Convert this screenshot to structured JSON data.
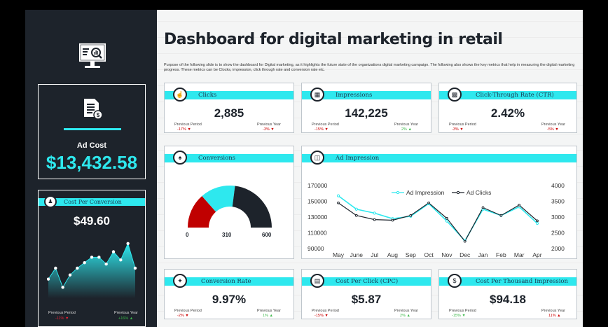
{
  "title": "Dashboard for digital marketing in retail",
  "subtitle": "Purpose of the following slide is to show the dashboard for Digital marketing, as it highlights the future state of the organizations digital marketing campaign. The following also shows the key metrics that help in measuring the digital marketing progress. These metrics can be Clocks, impression, click through rate and conversion rate etc.",
  "ad_cost": {
    "label": "Ad Cost",
    "value": "$13,432.58"
  },
  "cost_per_conversion": {
    "title": "Cost Per Conversion",
    "value": "$49.60",
    "prev_period_label": "Previous Period",
    "prev_period_value": "-11% ▼",
    "prev_year_label": "Previous Year",
    "prev_year_value": "+16% ▲"
  },
  "clicks": {
    "title": "Clicks",
    "value": "2,885",
    "pp_label": "Previous Period",
    "pp_value": "-17% ▼",
    "py_label": "Previous Year",
    "py_value": "-3% ▼"
  },
  "impressions": {
    "title": "Impressions",
    "value": "142,225",
    "pp_label": "Previous Period",
    "pp_value": "-15% ▼",
    "py_label": "Previous Year",
    "py_value": "2% ▲"
  },
  "ctr": {
    "title": "Click-Through Rate (CTR)",
    "value": "2.42%",
    "pp_label": "Previous Period",
    "pp_value": "-3% ▼",
    "py_label": "Previous Year",
    "py_value": "-5% ▼"
  },
  "conversions": {
    "title": "Conversions",
    "min": "0",
    "mid": "310",
    "max": "600"
  },
  "ad_impression": {
    "title": "Ad Impression"
  },
  "conversion_rate": {
    "title": "Conversion Rate",
    "value": "9.97%",
    "pp_label": "Previous Period",
    "pp_value": "-2% ▼",
    "py_label": "Previous Year",
    "py_value": "1% ▲"
  },
  "cpc": {
    "title": "Cost Per Click (CPC)",
    "value": "$5.87",
    "pp_label": "Previous Period",
    "pp_value": "-15% ▼",
    "py_label": "Previous Year",
    "py_value": "2% ▲"
  },
  "cpm": {
    "title": "Cost Per Thousand Impression",
    "value": "$94.18",
    "pp_label": "Previous Period",
    "pp_value": "-15% ▼",
    "py_label": "Previous Year",
    "py_value": "11% ▲"
  },
  "colors": {
    "accent": "#2ee8ee",
    "dark": "#1d232b",
    "red": "#c00000",
    "green": "#3cb84a"
  },
  "chart_data": [
    {
      "type": "line",
      "title": "Ad Impression",
      "categories": [
        "May",
        "June",
        "Jul",
        "Aug",
        "Sep",
        "Oct",
        "Nov",
        "Dec",
        "Jan",
        "Feb",
        "Mar",
        "Apr"
      ],
      "series": [
        {
          "name": "Ad Impression",
          "axis": "left",
          "values": [
            157000,
            140000,
            135000,
            128000,
            131000,
            147000,
            125000,
            100000,
            140000,
            132000,
            143000,
            122000
          ]
        },
        {
          "name": "Ad Clicks",
          "axis": "right",
          "values": [
            3450,
            3050,
            2920,
            2900,
            3050,
            3450,
            2960,
            2230,
            3300,
            3050,
            3380,
            2880
          ]
        }
      ],
      "ylim_left": [
        90000,
        170000
      ],
      "yticks_left": [
        "170000",
        "150000",
        "130000",
        "110000",
        "90000"
      ],
      "ylim_right": [
        2000,
        4000
      ],
      "yticks_right": [
        "4000",
        "3500",
        "3000",
        "2500",
        "2000"
      ]
    },
    {
      "type": "area",
      "title": "Cost Per Conversion trend",
      "values": [
        14,
        22,
        8,
        17,
        22,
        26,
        30,
        30,
        25,
        34,
        28,
        40,
        22
      ],
      "ylim": [
        0,
        45
      ]
    },
    {
      "type": "gauge",
      "title": "Conversions",
      "min": 0,
      "max": 600,
      "segments": [
        {
          "name": "low",
          "color": "#c00000",
          "fraction": 0.27
        },
        {
          "name": "mid",
          "color": "#2ee8ee",
          "fraction": 0.27
        },
        {
          "name": "high",
          "color": "#1d232b",
          "fraction": 0.46
        }
      ]
    }
  ]
}
